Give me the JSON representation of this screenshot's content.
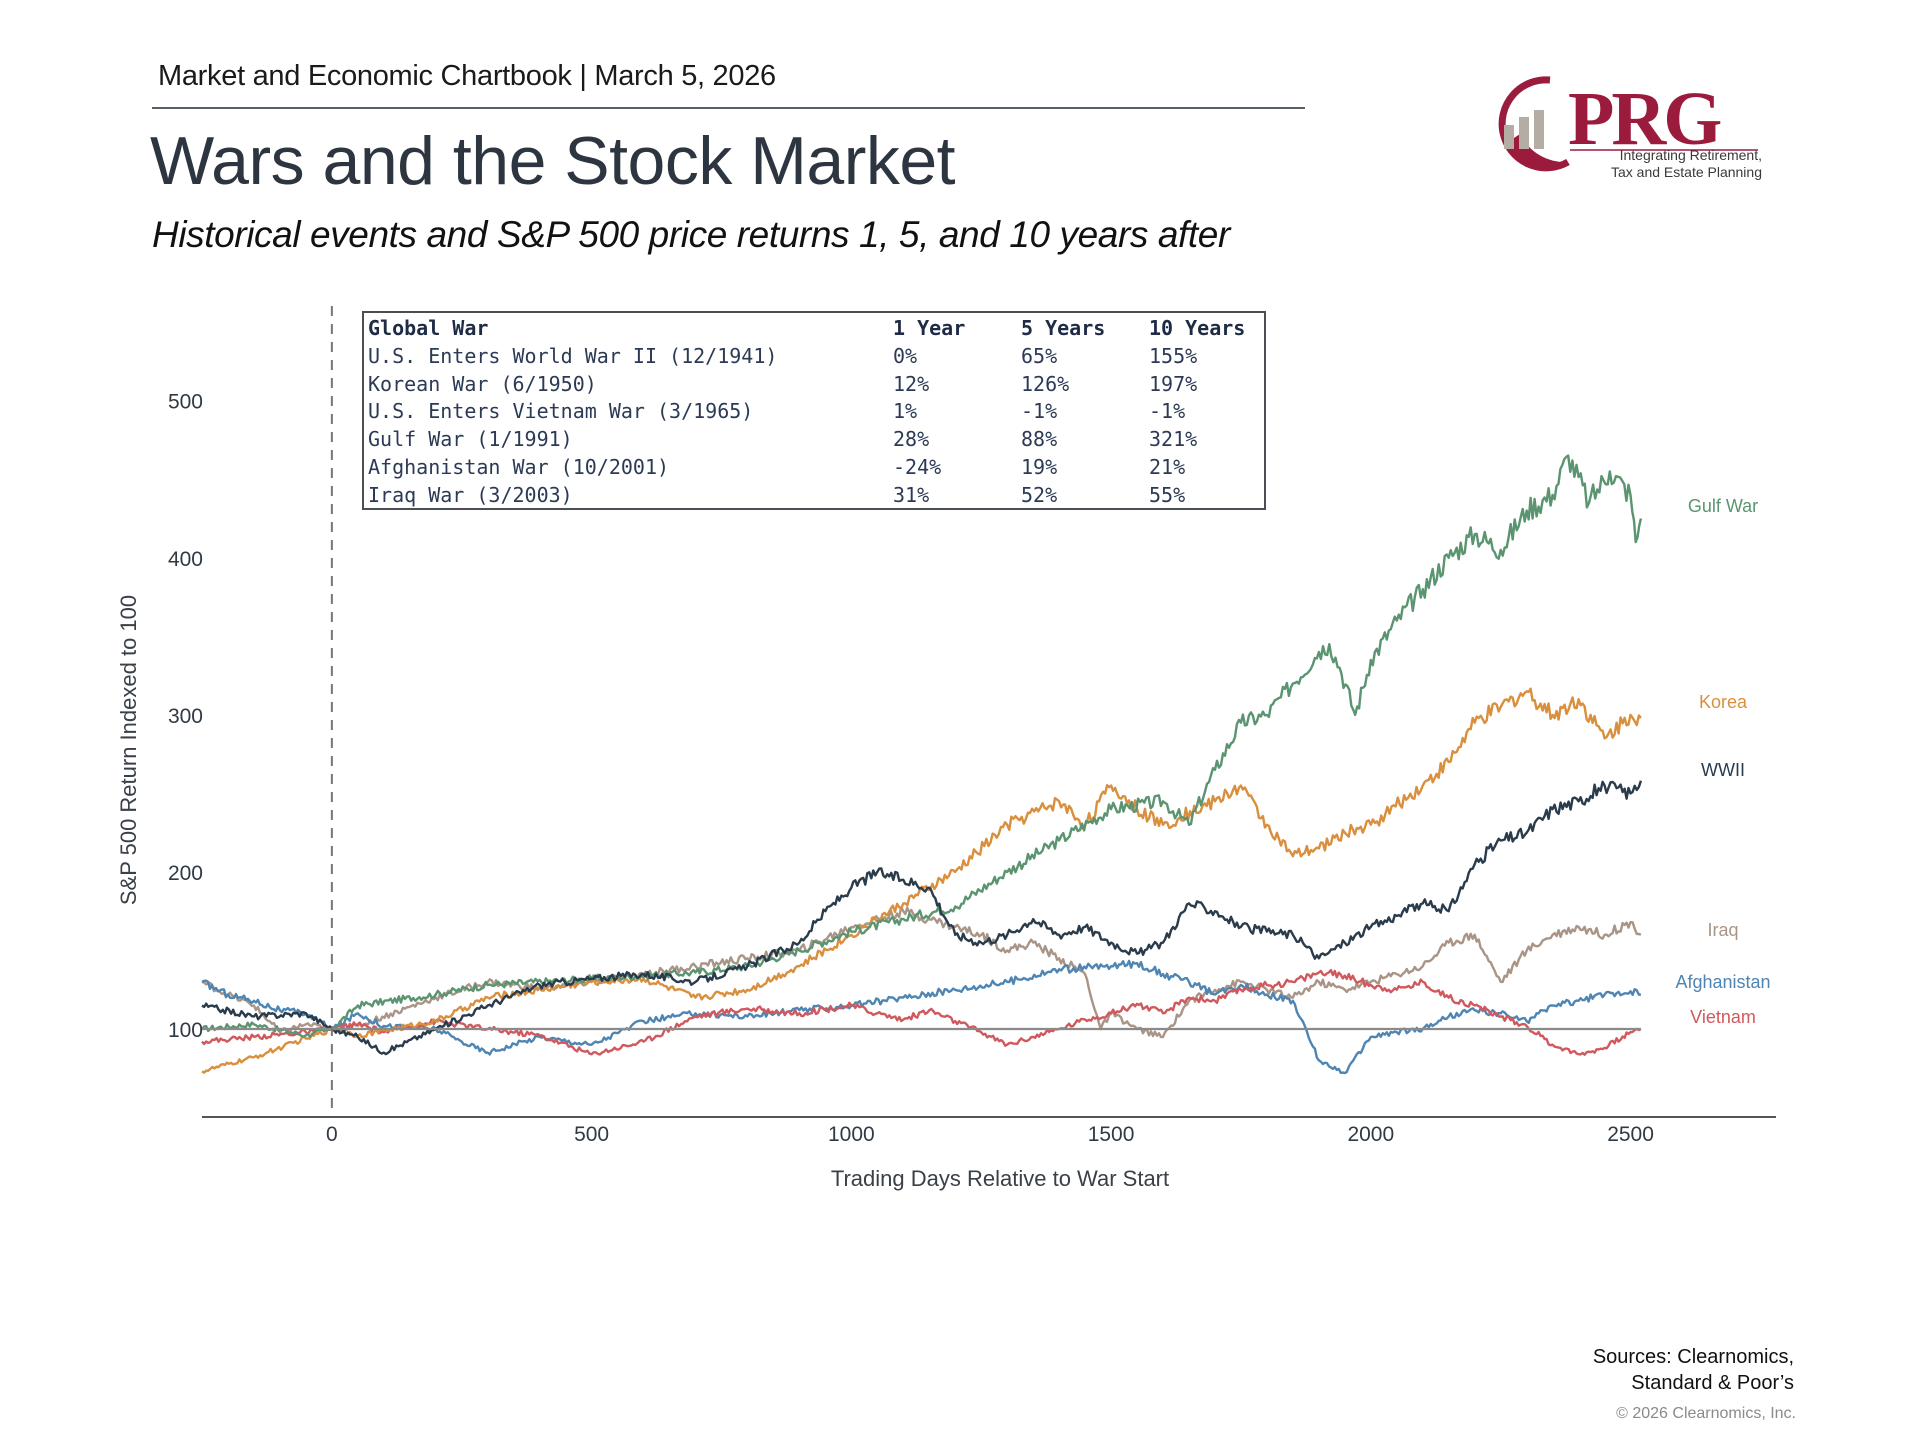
{
  "header": {
    "chartbook": "Market and Economic Chartbook | March 5, 2026",
    "title": "Wars and the Stock Market",
    "subtitle": "Historical events and S&P 500 price returns 1, 5, and 10 years after"
  },
  "logo": {
    "wordmark": "PRG",
    "tagline_line1": "Integrating Retirement,",
    "tagline_line2": "Tax and Estate Planning",
    "brand_color": "#9b1b3c",
    "bar_color": "#b5aca3"
  },
  "table": {
    "columns": [
      "Global War",
      "1 Year",
      "5 Years",
      "10 Years"
    ],
    "rows": [
      [
        "U.S. Enters World War II (12/1941)",
        "0%",
        "65%",
        "155%"
      ],
      [
        "Korean War (6/1950)",
        "12%",
        "126%",
        "197%"
      ],
      [
        "U.S. Enters Vietnam War (3/1965)",
        "1%",
        "-1%",
        "-1%"
      ],
      [
        "Gulf War (1/1991)",
        "28%",
        "88%",
        "321%"
      ],
      [
        "Afghanistan War (10/2001)",
        "-24%",
        "19%",
        "21%"
      ],
      [
        "Iraq War (3/2003)",
        "31%",
        "52%",
        "55%"
      ]
    ]
  },
  "footer": {
    "sources_line1": "Sources: Clearnomics,",
    "sources_line2": "Standard & Poor’s",
    "copyright": "© 2026 Clearnomics, Inc."
  },
  "chart_data": {
    "type": "line",
    "title": "Wars and the Stock Market",
    "xlabel": "Trading Days Relative to War Start",
    "ylabel": "S&P 500 Return Indexed to 100",
    "xlim": [
      -250,
      2780
    ],
    "ylim": [
      44,
      545
    ],
    "xticks": [
      0,
      500,
      1000,
      1500,
      2000,
      2500
    ],
    "yticks": [
      100,
      200,
      300,
      400,
      500
    ],
    "grid": false,
    "reference_lines": [
      {
        "type": "horizontal",
        "value": 100,
        "style": "solid"
      },
      {
        "type": "vertical",
        "value": 0,
        "style": "dashed"
      }
    ],
    "legend": "direct-labels-right",
    "series": [
      {
        "name": "Gulf War",
        "color": "#5a9470",
        "x": [
          -250,
          -150,
          -50,
          0,
          50,
          200,
          300,
          500,
          700,
          800,
          900,
          1000,
          1100,
          1200,
          1300,
          1400,
          1500,
          1600,
          1650,
          1700,
          1750,
          1800,
          1850,
          1900,
          1920,
          1940,
          1970,
          2000,
          2050,
          2100,
          2150,
          2200,
          2250,
          2300,
          2350,
          2380,
          2420,
          2460,
          2500,
          2510,
          2520
        ],
        "y": [
          100,
          103,
          96,
          100,
          115,
          122,
          128,
          132,
          136,
          140,
          150,
          162,
          170,
          178,
          200,
          220,
          240,
          245,
          230,
          265,
          295,
          300,
          320,
          340,
          345,
          330,
          300,
          335,
          360,
          380,
          400,
          415,
          405,
          430,
          440,
          465,
          435,
          455,
          440,
          410,
          425
        ]
      },
      {
        "name": "Korea",
        "color": "#d98f3e",
        "x": [
          -250,
          -150,
          -50,
          0,
          50,
          200,
          300,
          500,
          600,
          700,
          800,
          900,
          1000,
          1100,
          1200,
          1300,
          1400,
          1450,
          1500,
          1550,
          1600,
          1700,
          1750,
          1800,
          1850,
          1900,
          1950,
          2000,
          2100,
          2150,
          2200,
          2250,
          2300,
          2350,
          2400,
          2450,
          2500,
          2520
        ],
        "y": [
          73,
          82,
          94,
          100,
          96,
          105,
          120,
          130,
          132,
          120,
          125,
          140,
          160,
          180,
          200,
          230,
          245,
          230,
          255,
          240,
          230,
          245,
          255,
          230,
          210,
          215,
          225,
          230,
          255,
          270,
          295,
          305,
          315,
          300,
          310,
          285,
          300,
          298
        ]
      },
      {
        "name": "WWII",
        "color": "#2a3b4c",
        "x": [
          -250,
          -150,
          -50,
          0,
          50,
          100,
          200,
          300,
          400,
          500,
          600,
          700,
          800,
          900,
          950,
          1000,
          1050,
          1100,
          1150,
          1200,
          1250,
          1300,
          1350,
          1400,
          1450,
          1500,
          1550,
          1600,
          1650,
          1700,
          1750,
          1800,
          1850,
          1900,
          1950,
          2000,
          2050,
          2100,
          2150,
          2200,
          2250,
          2300,
          2350,
          2400,
          2450,
          2500,
          2520
        ],
        "y": [
          115,
          108,
          110,
          100,
          95,
          85,
          100,
          115,
          128,
          132,
          135,
          130,
          140,
          155,
          175,
          190,
          200,
          195,
          190,
          160,
          155,
          160,
          170,
          160,
          165,
          155,
          148,
          155,
          180,
          175,
          165,
          162,
          160,
          145,
          155,
          165,
          172,
          180,
          175,
          205,
          220,
          225,
          240,
          245,
          255,
          250,
          258
        ]
      },
      {
        "name": "Iraq",
        "color": "#a89587",
        "x": [
          -250,
          -200,
          -150,
          -100,
          -50,
          0,
          50,
          200,
          300,
          400,
          500,
          600,
          700,
          800,
          900,
          1000,
          1100,
          1150,
          1200,
          1250,
          1300,
          1350,
          1400,
          1450,
          1480,
          1500,
          1550,
          1600,
          1650,
          1700,
          1750,
          1800,
          1850,
          1900,
          1950,
          2000,
          2050,
          2100,
          2150,
          2200,
          2250,
          2300,
          2350,
          2400,
          2450,
          2500,
          2520
        ],
        "y": [
          130,
          122,
          115,
          98,
          103,
          100,
          102,
          120,
          130,
          126,
          130,
          135,
          140,
          145,
          150,
          165,
          175,
          170,
          165,
          160,
          150,
          155,
          145,
          135,
          100,
          110,
          100,
          95,
          118,
          125,
          130,
          125,
          120,
          130,
          125,
          130,
          135,
          140,
          155,
          160,
          130,
          150,
          160,
          165,
          160,
          168,
          160
        ]
      },
      {
        "name": "Afghanistan",
        "color": "#4f85b2",
        "x": [
          -250,
          -200,
          -150,
          -100,
          -50,
          0,
          50,
          100,
          200,
          250,
          300,
          400,
          500,
          600,
          700,
          800,
          900,
          1000,
          1100,
          1200,
          1300,
          1400,
          1500,
          1550,
          1600,
          1650,
          1700,
          1750,
          1800,
          1850,
          1900,
          1950,
          2000,
          2050,
          2100,
          2150,
          2200,
          2250,
          2300,
          2350,
          2400,
          2450,
          2500,
          2520
        ],
        "y": [
          130,
          122,
          118,
          112,
          110,
          100,
          110,
          102,
          100,
          92,
          85,
          95,
          90,
          105,
          110,
          108,
          112,
          115,
          120,
          125,
          130,
          138,
          140,
          142,
          135,
          130,
          122,
          128,
          122,
          118,
          80,
          72,
          95,
          98,
          100,
          108,
          112,
          110,
          105,
          115,
          118,
          122,
          124,
          122
        ]
      },
      {
        "name": "Vietnam",
        "color": "#d0595e",
        "x": [
          -250,
          -150,
          -50,
          0,
          50,
          100,
          200,
          300,
          400,
          500,
          600,
          700,
          800,
          900,
          1000,
          1050,
          1100,
          1150,
          1200,
          1250,
          1300,
          1350,
          1400,
          1450,
          1500,
          1550,
          1600,
          1650,
          1700,
          1750,
          1800,
          1850,
          1900,
          1950,
          2000,
          2050,
          2100,
          2150,
          2200,
          2250,
          2300,
          2350,
          2400,
          2450,
          2500,
          2520
        ],
        "y": [
          92,
          95,
          98,
          100,
          103,
          98,
          105,
          100,
          96,
          84,
          92,
          108,
          113,
          110,
          115,
          110,
          106,
          112,
          105,
          98,
          90,
          95,
          100,
          106,
          110,
          116,
          110,
          120,
          118,
          125,
          128,
          130,
          136,
          134,
          128,
          125,
          130,
          120,
          115,
          108,
          102,
          90,
          84,
          88,
          98,
          100
        ]
      }
    ]
  }
}
